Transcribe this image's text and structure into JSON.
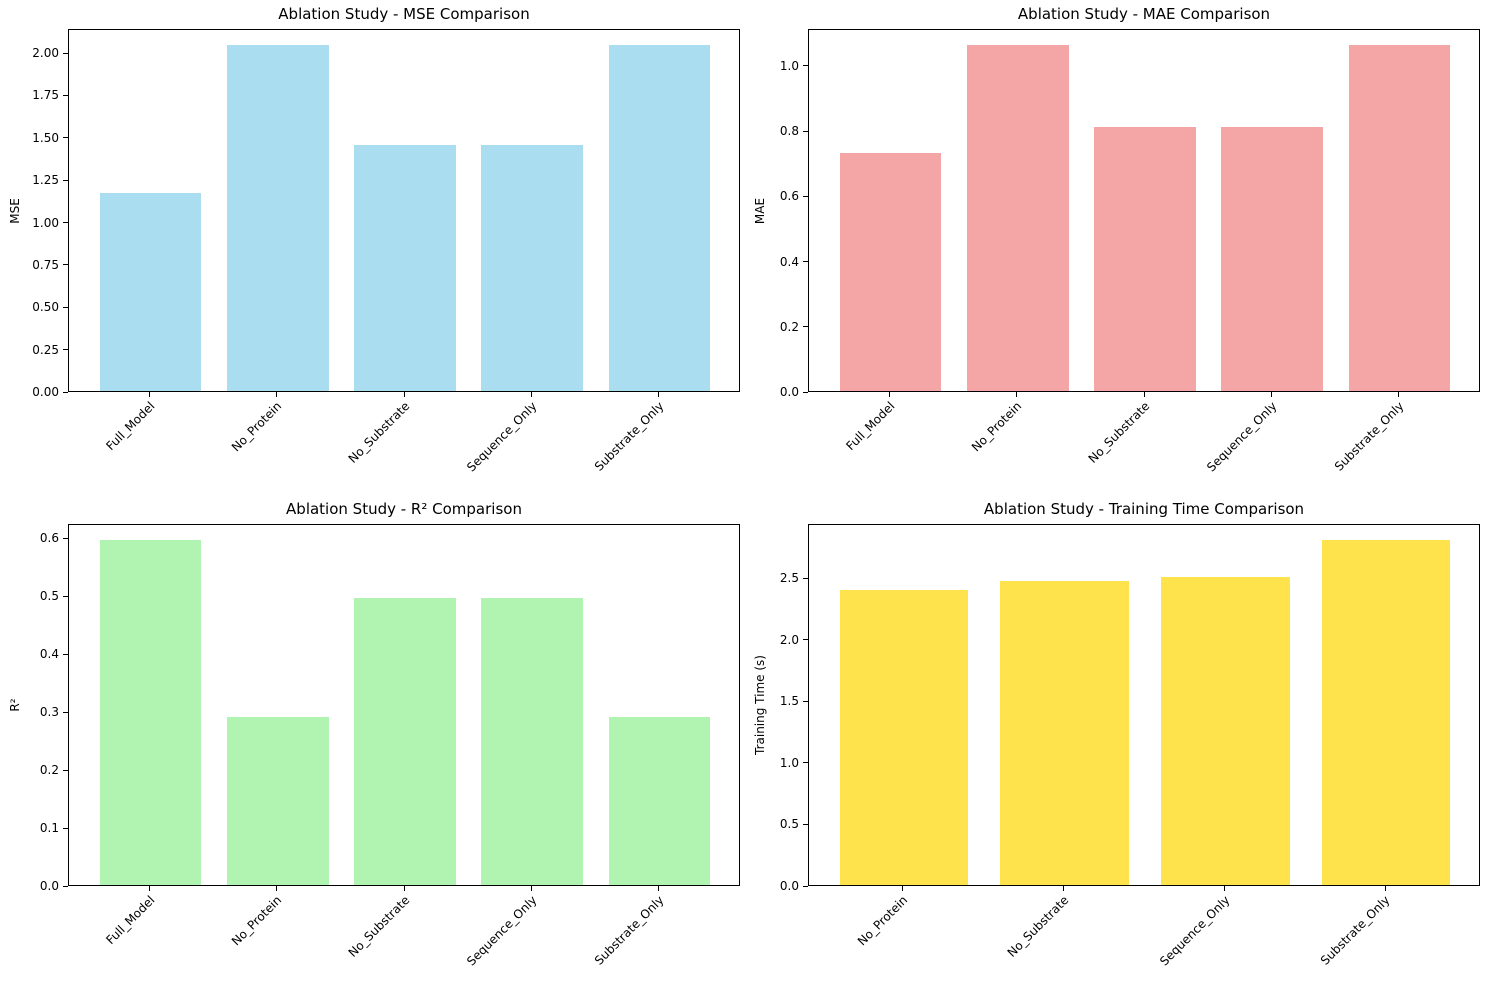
{
  "figure": {
    "background": "#ffffff"
  },
  "chart_data": [
    {
      "type": "bar",
      "title": "Ablation Study - MSE Comparison",
      "ylabel": "MSE",
      "categories": [
        "Full_Model",
        "No_Protein",
        "No_Substrate",
        "Sequence_Only",
        "Substrate_Only"
      ],
      "values": [
        1.17,
        2.04,
        1.45,
        1.45,
        2.04
      ],
      "ytick_labels": [
        "0.00",
        "0.25",
        "0.50",
        "0.75",
        "1.00",
        "1.25",
        "1.50",
        "1.75",
        "2.00"
      ],
      "ylim": [
        0,
        2.142
      ],
      "bar_color": "#abddf1",
      "grid": false,
      "legend_position": "none"
    },
    {
      "type": "bar",
      "title": "Ablation Study - MAE Comparison",
      "ylabel": "MAE",
      "categories": [
        "Full_Model",
        "No_Protein",
        "No_Substrate",
        "Sequence_Only",
        "Substrate_Only"
      ],
      "values": [
        0.73,
        1.06,
        0.81,
        0.81,
        1.06
      ],
      "ytick_labels": [
        "0.0",
        "0.2",
        "0.4",
        "0.6",
        "0.8",
        "1.0"
      ],
      "ylim": [
        0,
        1.113
      ],
      "bar_color": "#f4a6a6",
      "grid": false,
      "legend_position": "none"
    },
    {
      "type": "bar",
      "title": "Ablation Study - R² Comparison",
      "ylabel": "R²",
      "categories": [
        "Full_Model",
        "No_Protein",
        "No_Substrate",
        "Sequence_Only",
        "Substrate_Only"
      ],
      "values": [
        0.595,
        0.29,
        0.495,
        0.495,
        0.29
      ],
      "ytick_labels": [
        "0.0",
        "0.1",
        "0.2",
        "0.3",
        "0.4",
        "0.5",
        "0.6"
      ],
      "ylim": [
        0,
        0.625
      ],
      "bar_color": "#b1f3b1",
      "grid": false,
      "legend_position": "none"
    },
    {
      "type": "bar",
      "title": "Ablation Study - Training Time Comparison",
      "ylabel": "Training Time (s)",
      "categories": [
        "No_Protein",
        "No_Substrate",
        "Sequence_Only",
        "Substrate_Only"
      ],
      "values": [
        2.4,
        2.47,
        2.5,
        2.8
      ],
      "ytick_labels": [
        "0.0",
        "0.5",
        "1.0",
        "1.5",
        "2.0",
        "2.5"
      ],
      "ylim": [
        0,
        2.94
      ],
      "bar_color": "#ffe34c",
      "grid": false,
      "legend_position": "none"
    }
  ]
}
